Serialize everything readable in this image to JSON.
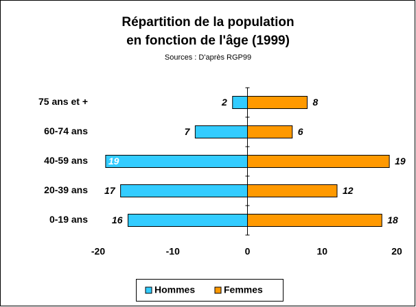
{
  "chart_data": {
    "type": "pyramid",
    "title": "Répartition de la population",
    "title_line2": "en fonction de l'âge (1999)",
    "subtitle": "Sources : D'après RGP99",
    "categories": [
      "0-19 ans",
      "20-39 ans",
      "40-59 ans",
      "60-74 ans",
      "75 ans et +"
    ],
    "series": [
      {
        "name": "Hommes",
        "color": "#33ccff",
        "values": [
          -16,
          -17,
          -19,
          -7,
          -2
        ],
        "value_labels": [
          "16",
          "17",
          "19",
          "7",
          "2"
        ]
      },
      {
        "name": "Femmes",
        "color": "#ff9900",
        "values": [
          18,
          12,
          19,
          6,
          8
        ]
      }
    ],
    "xlim": [
      -20,
      20
    ],
    "xticks": [
      -20,
      -10,
      0,
      10,
      20
    ],
    "legend": "bottom"
  }
}
